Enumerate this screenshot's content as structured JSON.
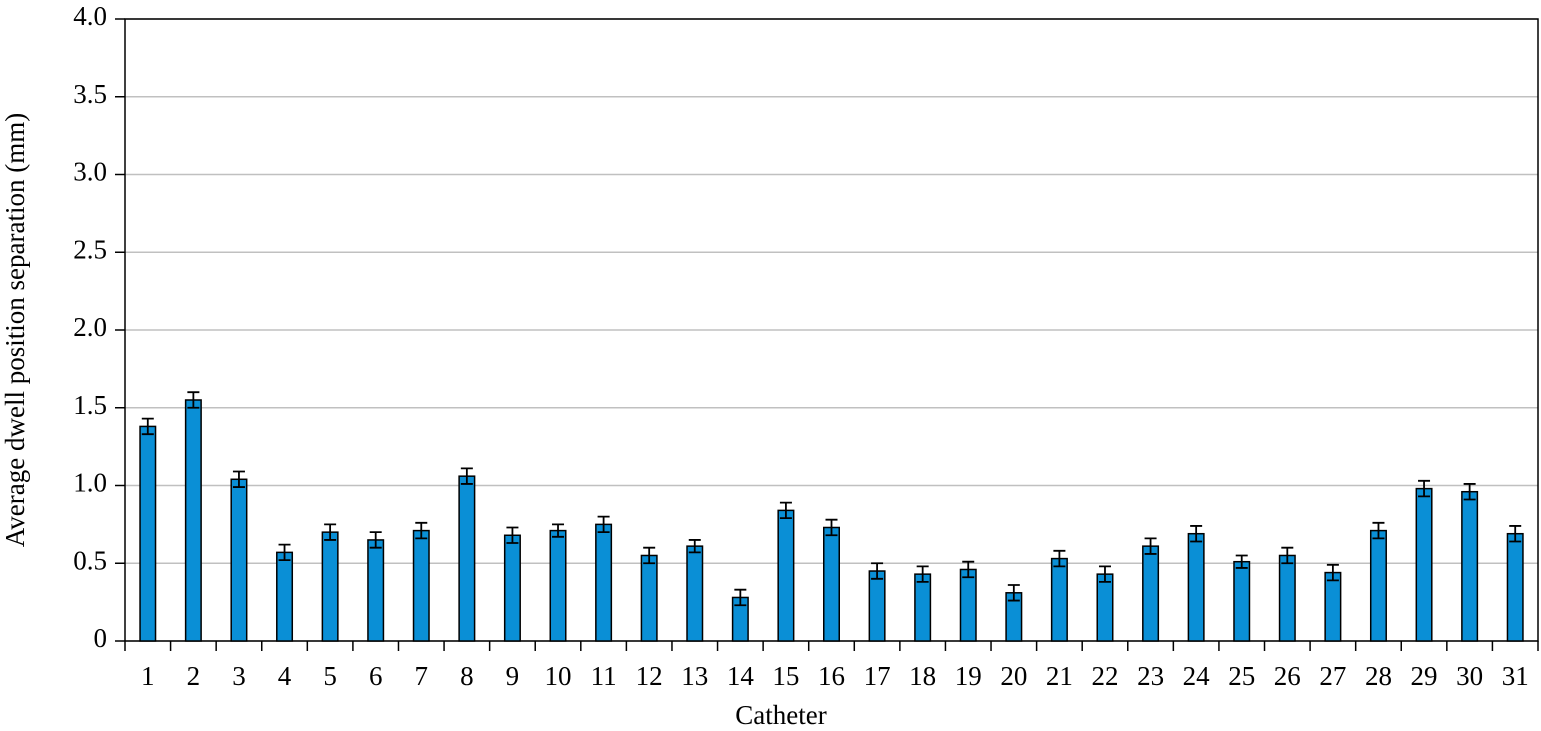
{
  "chart_data": {
    "type": "bar",
    "x_label": "Catheter",
    "y_label": "Average dwell position separation (mm)",
    "categories": [
      "1",
      "2",
      "3",
      "4",
      "5",
      "6",
      "7",
      "8",
      "9",
      "10",
      "11",
      "12",
      "13",
      "14",
      "15",
      "16",
      "17",
      "18",
      "19",
      "20",
      "21",
      "22",
      "23",
      "24",
      "25",
      "26",
      "27",
      "28",
      "29",
      "30",
      "31"
    ],
    "values": [
      1.38,
      1.55,
      1.04,
      0.57,
      0.7,
      0.65,
      0.71,
      1.06,
      0.68,
      0.71,
      0.75,
      0.55,
      0.61,
      0.28,
      0.84,
      0.73,
      0.45,
      0.43,
      0.46,
      0.31,
      0.53,
      0.43,
      0.61,
      0.69,
      0.51,
      0.55,
      0.44,
      0.71,
      0.98,
      0.96,
      0.69
    ],
    "errors": [
      0.05,
      0.05,
      0.05,
      0.05,
      0.05,
      0.05,
      0.05,
      0.05,
      0.05,
      0.04,
      0.05,
      0.05,
      0.04,
      0.05,
      0.05,
      0.05,
      0.05,
      0.05,
      0.05,
      0.05,
      0.05,
      0.05,
      0.05,
      0.05,
      0.04,
      0.05,
      0.05,
      0.05,
      0.05,
      0.05,
      0.05
    ],
    "color": "#0a8fd6",
    "ylim": [
      0,
      4
    ],
    "yticks": [
      0,
      0.5,
      {
        "value": 1,
        "label": "1.0"
      },
      1.5,
      {
        "value": 2,
        "label": "2.0"
      },
      2.5,
      {
        "value": 3,
        "label": "3.0"
      },
      3.5,
      {
        "value": 4,
        "label": "4.0"
      }
    ],
    "grid": true
  }
}
